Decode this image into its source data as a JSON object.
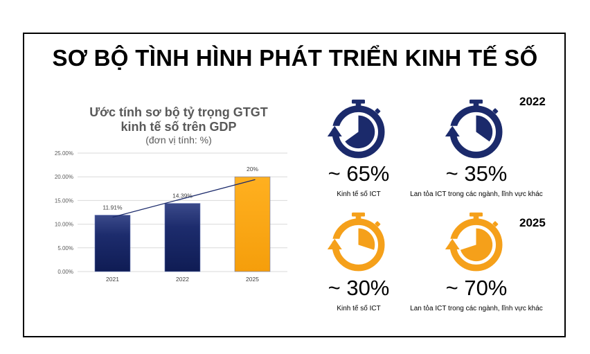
{
  "title": "SƠ BỘ TÌNH HÌNH PHÁT TRIỂN KINH TẾ SỐ",
  "chart_data": {
    "type": "bar",
    "title_line1": "Ước tính sơ bộ tỷ trọng GTGT",
    "title_line2": "kinh tế số trên GDP",
    "subtitle": "(đơn vị tính: %)",
    "categories": [
      "2021",
      "2022",
      "2025"
    ],
    "values": [
      11.91,
      14.39,
      20
    ],
    "data_labels": [
      "11.91%",
      "14.39%",
      "20%"
    ],
    "bar_colors": [
      "#1b2a6b",
      "#1b2a6b",
      "#ffa500"
    ],
    "y_ticks": [
      "0.00%",
      "5.00%",
      "10.00%",
      "15.00%",
      "20.00%",
      "25.00%"
    ],
    "ylim": [
      0,
      25
    ],
    "grid": true,
    "trendline": true
  },
  "colors": {
    "navy": "#1b2a6b",
    "orange": "#f5a01a"
  },
  "panels": [
    {
      "year": "2022",
      "items": [
        {
          "value": "~ 65%",
          "label": "Kinh tế số ICT",
          "share": 0.65,
          "color": "#1b2a6b",
          "icon": "stopwatch-icon"
        },
        {
          "value": "~ 35%",
          "label": "Lan tỏa ICT trong các ngành, lĩnh vực khác",
          "share": 0.35,
          "color": "#1b2a6b",
          "icon": "stopwatch-icon"
        }
      ]
    },
    {
      "year": "2025",
      "items": [
        {
          "value": "~ 30%",
          "label": "Kinh tế số ICT",
          "share": 0.3,
          "color": "#f5a01a",
          "icon": "stopwatch-icon"
        },
        {
          "value": "~ 70%",
          "label": "Lan tỏa ICT trong các ngành, lĩnh vực khác",
          "share": 0.7,
          "color": "#f5a01a",
          "icon": "stopwatch-icon"
        }
      ]
    }
  ]
}
